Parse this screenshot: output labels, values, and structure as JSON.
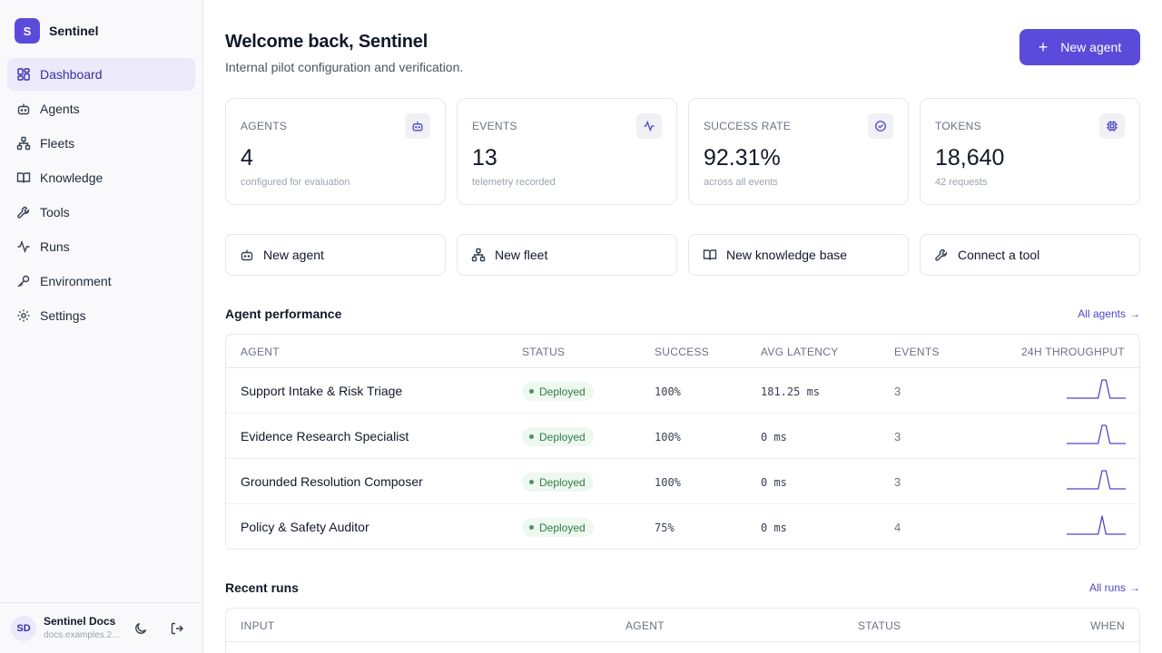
{
  "app": {
    "brand_initial": "S",
    "brand_name": "Sentinel"
  },
  "sidebar": {
    "items": [
      {
        "label": "Dashboard",
        "icon": "dashboard-icon",
        "active": true
      },
      {
        "label": "Agents",
        "icon": "bot-icon"
      },
      {
        "label": "Fleets",
        "icon": "network-icon"
      },
      {
        "label": "Knowledge",
        "icon": "book-icon"
      },
      {
        "label": "Tools",
        "icon": "wrench-icon"
      },
      {
        "label": "Runs",
        "icon": "activity-icon"
      },
      {
        "label": "Environment",
        "icon": "key-icon"
      },
      {
        "label": "Settings",
        "icon": "gear-icon"
      }
    ],
    "user": {
      "initials": "SD",
      "name": "Sentinel Docs",
      "email": "docs.examples.2..."
    }
  },
  "header": {
    "title": "Welcome back, Sentinel",
    "subtitle": "Internal pilot configuration and verification.",
    "new_agent_label": "New agent"
  },
  "stats": [
    {
      "label": "AGENTS",
      "value": "4",
      "note": "configured for evaluation",
      "icon": "bot-icon"
    },
    {
      "label": "EVENTS",
      "value": "13",
      "note": "telemetry recorded",
      "icon": "activity-icon"
    },
    {
      "label": "SUCCESS RATE",
      "value": "92.31%",
      "note": "across all events",
      "icon": "check-circle-icon"
    },
    {
      "label": "TOKENS",
      "value": "18,640",
      "note": "42 requests",
      "icon": "cpu-icon"
    }
  ],
  "actions": [
    {
      "label": "New agent",
      "icon": "bot-icon"
    },
    {
      "label": "New fleet",
      "icon": "network-icon"
    },
    {
      "label": "New knowledge base",
      "icon": "book-icon"
    },
    {
      "label": "Connect a tool",
      "icon": "wrench-icon"
    }
  ],
  "performance": {
    "title": "Agent performance",
    "link": "All agents",
    "columns": [
      "AGENT",
      "STATUS",
      "SUCCESS",
      "AVG LATENCY",
      "EVENTS",
      "24H THROUGHPUT"
    ],
    "rows": [
      {
        "agent": "Support Intake & Risk Triage",
        "status": "Deployed",
        "success": "100%",
        "latency": "181.25 ms",
        "events": "3",
        "spark": [
          0,
          0,
          0,
          0,
          0,
          0,
          0,
          0,
          0,
          1,
          1,
          0,
          0,
          0,
          0,
          0
        ]
      },
      {
        "agent": "Evidence Research Specialist",
        "status": "Deployed",
        "success": "100%",
        "latency": "0 ms",
        "events": "3",
        "spark": [
          0,
          0,
          0,
          0,
          0,
          0,
          0,
          0,
          0,
          1,
          1,
          0,
          0,
          0,
          0,
          0
        ]
      },
      {
        "agent": "Grounded Resolution Composer",
        "status": "Deployed",
        "success": "100%",
        "latency": "0 ms",
        "events": "3",
        "spark": [
          0,
          0,
          0,
          0,
          0,
          0,
          0,
          0,
          0,
          1,
          1,
          0,
          0,
          0,
          0,
          0
        ]
      },
      {
        "agent": "Policy & Safety Auditor",
        "status": "Deployed",
        "success": "75%",
        "latency": "0 ms",
        "events": "4",
        "spark": [
          0,
          0,
          0,
          0,
          0,
          0,
          0,
          0,
          0,
          1,
          0,
          0,
          0,
          0,
          0,
          0
        ]
      }
    ]
  },
  "recent_runs": {
    "title": "Recent runs",
    "link": "All runs",
    "columns": [
      "INPUT",
      "AGENT",
      "STATUS",
      "WHEN"
    ]
  },
  "colors": {
    "accent": "#5b4bdb",
    "accent_soft": "#ebe9fa",
    "success": "#2f7d46"
  }
}
